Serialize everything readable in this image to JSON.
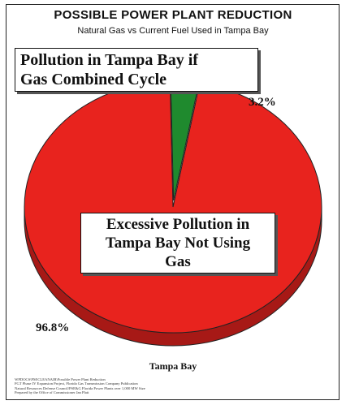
{
  "chart_data": {
    "type": "pie",
    "title": "POSSIBLE POWER PLANT REDUCTION",
    "subtitle": "Natural Gas vs  Current Fuel Used in Tampa Bay",
    "xlabel": "Tampa Bay",
    "slices": [
      {
        "label": "Pollution in Tampa Bay if Gas Combined Cycle",
        "value": 3.2,
        "display": "3.2%",
        "color": "#1f8a2e"
      },
      {
        "label": "Excessive Pollution in Tampa Bay Not Using Gas",
        "value": 96.8,
        "display": "96.8%",
        "color": "#e8231e"
      }
    ],
    "legend": "none",
    "three_d": true
  },
  "callouts": {
    "gas_line1": "Pollution in Tampa Bay if",
    "gas_line2": "Gas Combined Cycle",
    "nogas_line1": "Excessive Pollution in",
    "nogas_line2": "Tampa Bay Not Using",
    "nogas_line3": "Gas"
  },
  "sources": [
    "WPDOCS\\PM\\CLEANAIR\\Possible Power Plant Reduction",
    "FGT Phase IV Expansion Project, Florida Gas Transmission Company Publication",
    "Natural Resources Defense Council/PSE&G Florida Power Plants over 1,000 MW Size",
    "Prepared by the Office of Commissioner Jan Platt"
  ]
}
